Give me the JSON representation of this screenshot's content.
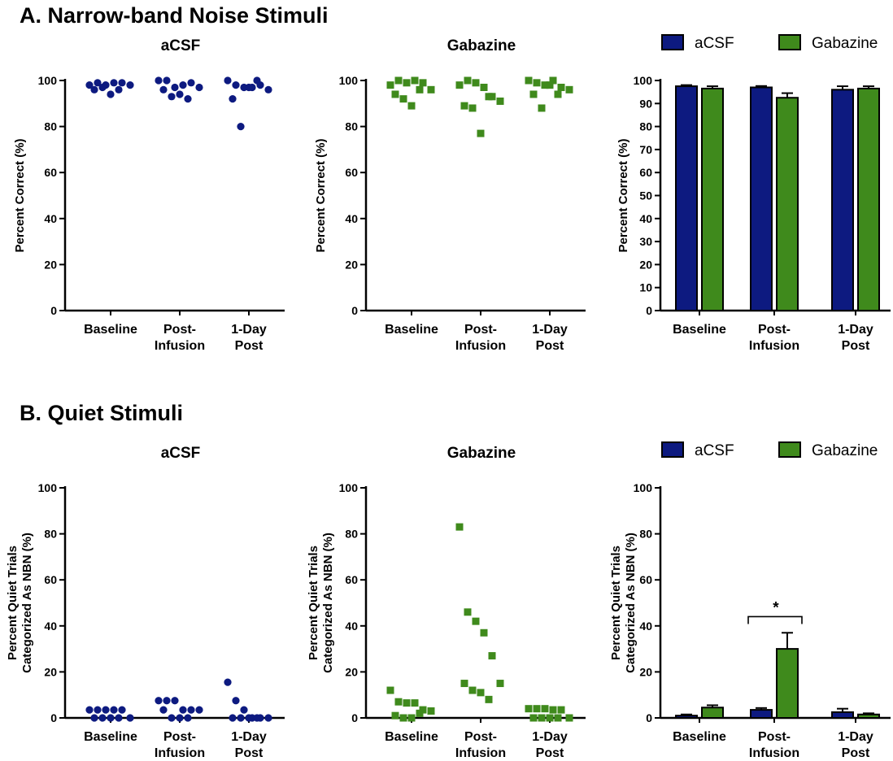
{
  "figure": {
    "section_a_title": "A. Narrow-band Noise Stimuli",
    "section_b_title": "B. Quiet Stimuli",
    "colors": {
      "acsf": "#0d1a80",
      "gabazine": "#3f8a1c",
      "axis": "#000000"
    }
  },
  "legend": {
    "acsf": "aCSF",
    "gabazine": "Gabazine"
  },
  "chart_data": [
    {
      "id": "A-acsf",
      "type": "scatter",
      "title": "aCSF",
      "marker": "circle",
      "color": "#0d1a80",
      "ylabel": "Percent Correct (%)",
      "ylim": [
        0,
        100
      ],
      "yticks": [
        0,
        20,
        40,
        60,
        80,
        100
      ],
      "categories": [
        "Baseline",
        "Post-\nInfusion",
        "1-Day\nPost"
      ],
      "points": [
        [
          98,
          99,
          98,
          99,
          99,
          98,
          96,
          97,
          94,
          96
        ],
        [
          100,
          100,
          97,
          98,
          99,
          97,
          96,
          93,
          94,
          92
        ],
        [
          100,
          98,
          97,
          97,
          98,
          96,
          92,
          80,
          97,
          100
        ]
      ]
    },
    {
      "id": "A-gabazine",
      "type": "scatter",
      "title": "Gabazine",
      "marker": "square",
      "color": "#3f8a1c",
      "ylabel": "Percent Correct (%)",
      "ylim": [
        0,
        100
      ],
      "yticks": [
        0,
        20,
        40,
        60,
        80,
        100
      ],
      "categories": [
        "Baseline",
        "Post-\nInfusion",
        "1-Day\nPost"
      ],
      "points": [
        [
          98,
          100,
          99,
          100,
          99,
          96,
          94,
          92,
          89,
          96
        ],
        [
          98,
          100,
          99,
          97,
          93,
          91,
          89,
          88,
          77,
          93
        ],
        [
          100,
          99,
          98,
          100,
          97,
          96,
          94,
          88,
          98,
          94
        ]
      ]
    },
    {
      "id": "A-bars",
      "type": "bar",
      "title": "",
      "ylabel": "Percent Correct (%)",
      "ylim": [
        0,
        100
      ],
      "yticks": [
        0,
        10,
        20,
        30,
        40,
        50,
        60,
        70,
        80,
        90,
        100
      ],
      "categories": [
        "Baseline",
        "Post-\nInfusion",
        "1-Day\nPost"
      ],
      "series": [
        {
          "name": "aCSF",
          "color": "#0d1a80",
          "values": [
            97.5,
            97.0,
            96.0
          ],
          "errors": [
            0.5,
            0.6,
            1.5
          ]
        },
        {
          "name": "Gabazine",
          "color": "#3f8a1c",
          "values": [
            96.5,
            92.5,
            96.5
          ],
          "errors": [
            1.0,
            2.0,
            1.0
          ]
        }
      ],
      "legend_position": "top"
    },
    {
      "id": "B-acsf",
      "type": "scatter",
      "title": "aCSF",
      "marker": "circle",
      "color": "#0d1a80",
      "ylabel": "Percent Quiet Trials\nCategorized As NBN (%)",
      "ylim": [
        0,
        100
      ],
      "yticks": [
        0,
        20,
        40,
        60,
        80,
        100
      ],
      "categories": [
        "Baseline",
        "Post-\nInfusion",
        "1-Day\nPost"
      ],
      "points": [
        [
          3.5,
          3.5,
          3.5,
          3.5,
          3.5,
          0,
          0,
          0,
          0,
          0
        ],
        [
          7.5,
          7.5,
          7.5,
          3.5,
          3.5,
          3.5,
          3.5,
          0,
          0,
          0
        ],
        [
          15.5,
          7.5,
          3.5,
          0,
          0,
          0,
          0,
          0,
          0,
          0
        ]
      ]
    },
    {
      "id": "B-gabazine",
      "type": "scatter",
      "title": "Gabazine",
      "marker": "square",
      "color": "#3f8a1c",
      "ylabel": "Percent Quiet Trials\nCategorized As NBN (%)",
      "ylim": [
        0,
        100
      ],
      "yticks": [
        0,
        20,
        40,
        60,
        80,
        100
      ],
      "categories": [
        "Baseline",
        "Post-\nInfusion",
        "1-Day\nPost"
      ],
      "points": [
        [
          12,
          7,
          6.5,
          6.5,
          3.5,
          3,
          1,
          0,
          0,
          2
        ],
        [
          83,
          46,
          42,
          37,
          27,
          15,
          15,
          12,
          11,
          8
        ],
        [
          4,
          4,
          4,
          3.5,
          3.5,
          0,
          0,
          0,
          0,
          0
        ]
      ]
    },
    {
      "id": "B-bars",
      "type": "bar",
      "title": "",
      "ylabel": "Percent Quiet Trials\nCategorized As NBN (%)",
      "ylim": [
        0,
        100
      ],
      "yticks": [
        0,
        20,
        40,
        60,
        80,
        100
      ],
      "categories": [
        "Baseline",
        "Post-\nInfusion",
        "1-Day\nPost"
      ],
      "series": [
        {
          "name": "aCSF",
          "color": "#0d1a80",
          "values": [
            1.0,
            3.5,
            2.5
          ],
          "errors": [
            0.5,
            0.8,
            1.5
          ]
        },
        {
          "name": "Gabazine",
          "color": "#3f8a1c",
          "values": [
            4.5,
            30.0,
            1.5
          ],
          "errors": [
            1.0,
            7.0,
            0.5
          ]
        }
      ],
      "legend_position": "top",
      "annotation": {
        "text": "*",
        "group": 1
      }
    }
  ]
}
